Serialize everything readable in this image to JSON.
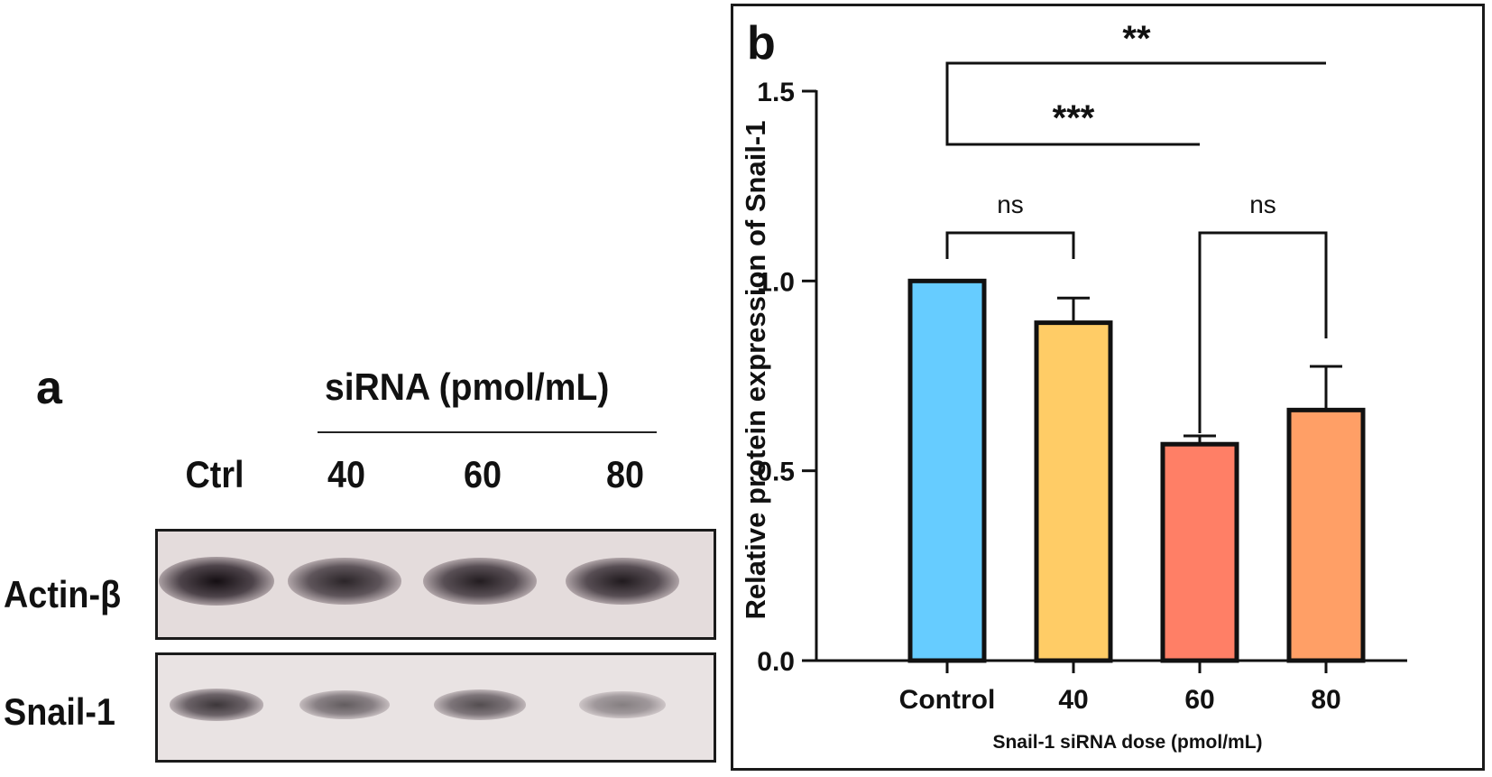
{
  "panel_a": {
    "letter": "a",
    "dose_header": "siRNA (pmol/mL)",
    "lanes": [
      "Ctrl",
      "40",
      "60",
      "80"
    ],
    "bands": [
      {
        "name": "Actin-β",
        "intensity": [
          1.0,
          0.85,
          0.9,
          0.92
        ]
      },
      {
        "name": "Snail-1",
        "intensity": [
          0.75,
          0.5,
          0.6,
          0.3
        ]
      }
    ]
  },
  "panel_b": {
    "letter": "b"
  },
  "colors": {
    "control": "#66CCFF",
    "dose_40": "#FFCC66",
    "dose_60": "#FF7F66",
    "dose_80": "#FF9F66",
    "outline": "#111111"
  },
  "chart_data": {
    "type": "bar",
    "categories": [
      "Control",
      "40",
      "60",
      "80"
    ],
    "values": [
      1.0,
      0.89,
      0.57,
      0.66
    ],
    "error": [
      0.0,
      0.065,
      0.022,
      0.115
    ],
    "xlabel": "Snail-1 siRNA dose (pmol/mL)",
    "ylabel": "Relative protein expression of Snail-1",
    "ylim": [
      0,
      1.5
    ],
    "yticks": [
      "0.0",
      "0.5",
      "1.0",
      "1.5"
    ],
    "comparisons": [
      {
        "from": 0,
        "to": 3,
        "label": "**"
      },
      {
        "from": 0,
        "to": 2,
        "label": "***"
      },
      {
        "from": 0,
        "to": 1,
        "label": "ns"
      },
      {
        "from": 2,
        "to": 3,
        "label": "ns"
      }
    ],
    "grid": false,
    "legend": "none"
  }
}
